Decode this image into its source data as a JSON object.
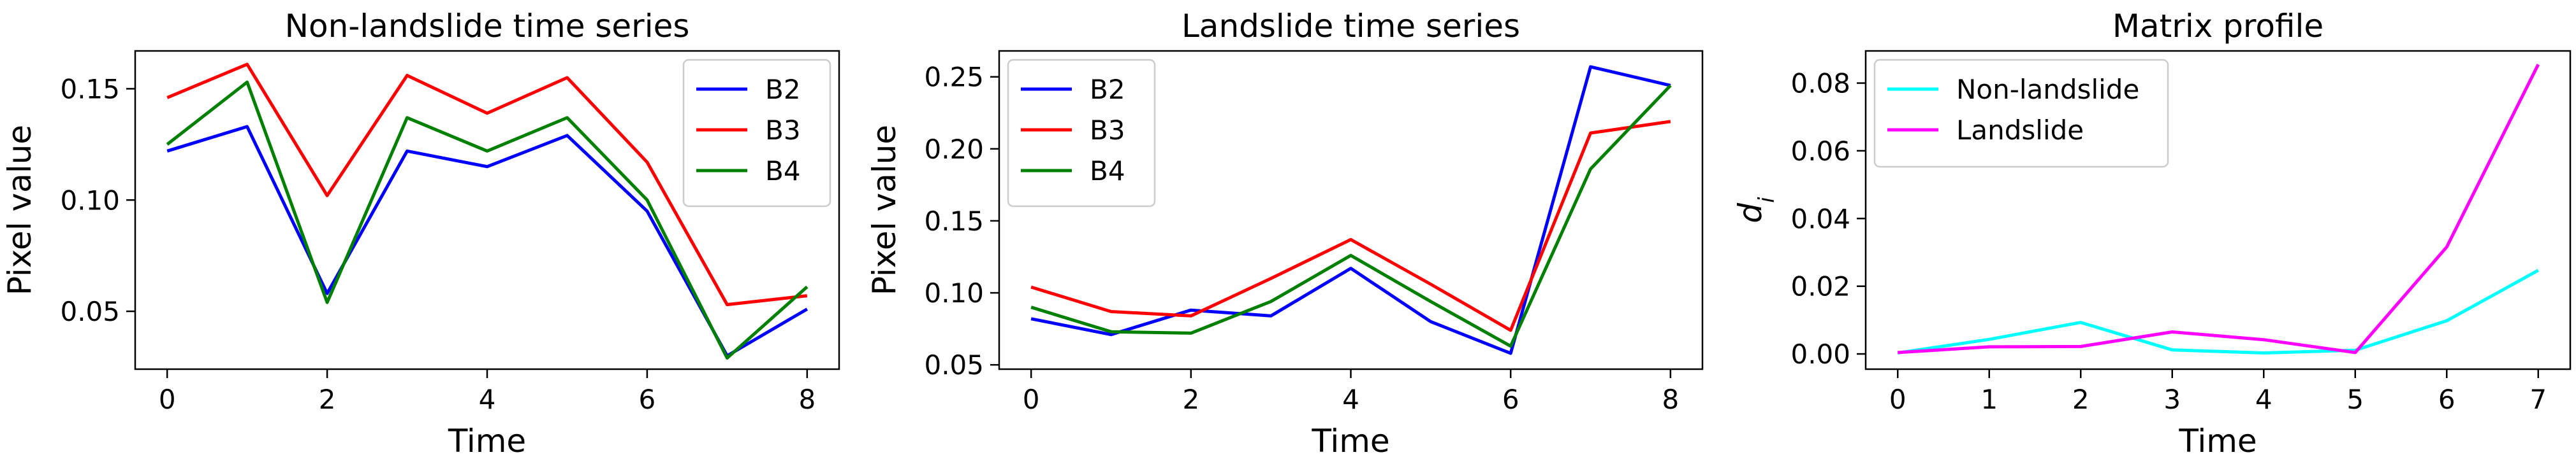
{
  "chart_data": [
    {
      "type": "line",
      "title": "Non-landslide time series",
      "xlabel": "Time",
      "ylabel": "Pixel value",
      "x": [
        0,
        1,
        2,
        3,
        4,
        5,
        6,
        7,
        8
      ],
      "xticks": [
        "0",
        "2",
        "4",
        "6",
        "8"
      ],
      "yticks": [
        "0.05",
        "0.10",
        "0.15"
      ],
      "xlim": [
        -0.4,
        8.4
      ],
      "ylim": [
        0.024,
        0.167
      ],
      "legend": "top-right",
      "series": [
        {
          "name": "B2",
          "color": "#0000ff",
          "values": [
            0.122,
            0.133,
            0.058,
            0.122,
            0.115,
            0.129,
            0.095,
            0.03,
            0.051
          ]
        },
        {
          "name": "B3",
          "color": "#ff0000",
          "values": [
            0.146,
            0.161,
            0.102,
            0.156,
            0.139,
            0.155,
            0.117,
            0.053,
            0.057
          ]
        },
        {
          "name": "B4",
          "color": "#008000",
          "values": [
            0.125,
            0.153,
            0.054,
            0.137,
            0.122,
            0.137,
            0.1,
            0.029,
            0.061
          ]
        }
      ]
    },
    {
      "type": "line",
      "title": "Landslide time series",
      "xlabel": "Time",
      "ylabel": "Pixel value",
      "x": [
        0,
        1,
        2,
        3,
        4,
        5,
        6,
        7,
        8
      ],
      "xticks": [
        "0",
        "2",
        "4",
        "6",
        "8"
      ],
      "yticks": [
        "0.05",
        "0.10",
        "0.15",
        "0.20",
        "0.25"
      ],
      "xlim": [
        -0.4,
        8.4
      ],
      "ylim": [
        0.047,
        0.268
      ],
      "legend": "top-left",
      "series": [
        {
          "name": "B2",
          "color": "#0000ff",
          "values": [
            0.082,
            0.071,
            0.088,
            0.084,
            0.117,
            0.08,
            0.058,
            0.257,
            0.244
          ]
        },
        {
          "name": "B3",
          "color": "#ff0000",
          "values": [
            0.104,
            0.087,
            0.084,
            0.11,
            0.137,
            0.106,
            0.074,
            0.211,
            0.219
          ]
        },
        {
          "name": "B4",
          "color": "#008000",
          "values": [
            0.09,
            0.073,
            0.072,
            0.094,
            0.126,
            0.094,
            0.063,
            0.186,
            0.244
          ]
        }
      ]
    },
    {
      "type": "line",
      "title": "Matrix profile",
      "xlabel": "Time",
      "ylabel": "d",
      "ylabel_subscript": "i",
      "x": [
        0,
        1,
        2,
        3,
        4,
        5,
        6,
        7
      ],
      "xticks": [
        "0",
        "1",
        "2",
        "3",
        "4",
        "5",
        "6",
        "7"
      ],
      "yticks": [
        "0.00",
        "0.02",
        "0.04",
        "0.06",
        "0.08"
      ],
      "xlim": [
        -0.35,
        7.35
      ],
      "ylim": [
        -0.0045,
        0.0895
      ],
      "legend": "top-left",
      "series": [
        {
          "name": "Non-landslide",
          "color": "#00ffff",
          "values": [
            0.0003,
            0.0043,
            0.0093,
            0.0012,
            0.0003,
            0.0011,
            0.0098,
            0.0247
          ]
        },
        {
          "name": "Landslide",
          "color": "#ff00ff",
          "values": [
            0.0004,
            0.0021,
            0.0022,
            0.0065,
            0.0042,
            0.0004,
            0.0316,
            0.0855
          ]
        }
      ]
    }
  ]
}
